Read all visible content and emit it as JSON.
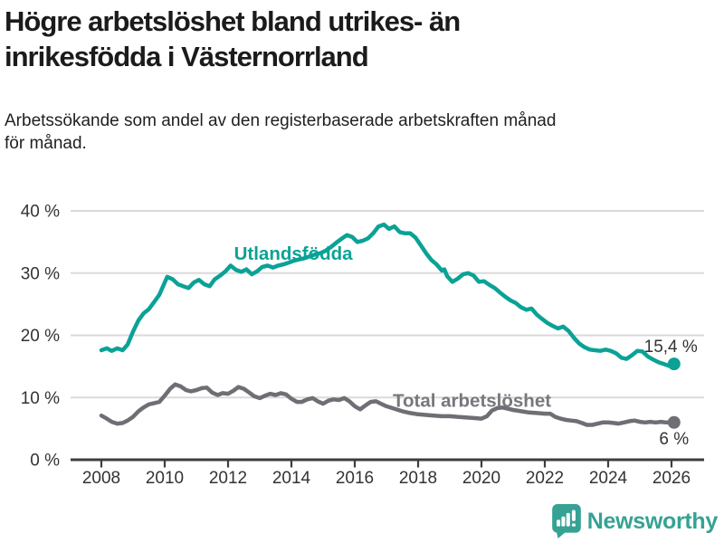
{
  "title_lines": [
    "Högre arbetslöshet bland utrikes- än",
    "inrikesfödda i Västernorrland"
  ],
  "subtitle_lines": [
    "Arbetssökande som andel av den registerbaserade arbetskraften månad",
    "för månad."
  ],
  "logo": {
    "text": "Newsworthy",
    "icon": "newsworthy-speech-bubble-chart-icon",
    "color": "#35a294"
  },
  "colors": {
    "background": "#ffffff",
    "grid": "#dadada",
    "axis": "#3d3d3d",
    "tick_text": "#333333",
    "annotation_text": "#333333",
    "foreign_born_line": "#0ba296",
    "total_line": "#6e6e74",
    "total_label": "#77777d"
  },
  "chart_data": {
    "type": "line",
    "title": "Högre arbetslöshet bland utrikes- än inrikesfödda i Västernorrland",
    "subtitle": "Arbetssökande som andel av den registerbaserade arbetskraften månad för månad.",
    "xlabel": "",
    "ylabel": "",
    "ylim": [
      0,
      40
    ],
    "xlim": [
      2007.0,
      2027.1
    ],
    "grid": "horizontal",
    "legend": "inline-labels",
    "y_ticks": [
      {
        "value": 0,
        "label": "0 %"
      },
      {
        "value": 10,
        "label": "10 %"
      },
      {
        "value": 20,
        "label": "20 %"
      },
      {
        "value": 30,
        "label": "30 %"
      },
      {
        "value": 40,
        "label": "40 %"
      }
    ],
    "x_ticks": [
      {
        "value": 2008,
        "label": "2008"
      },
      {
        "value": 2010,
        "label": "2010"
      },
      {
        "value": 2012,
        "label": "2012"
      },
      {
        "value": 2014,
        "label": "2014"
      },
      {
        "value": 2016,
        "label": "2016"
      },
      {
        "value": 2018,
        "label": "2018"
      },
      {
        "value": 2020,
        "label": "2020"
      },
      {
        "value": 2022,
        "label": "2022"
      },
      {
        "value": 2024,
        "label": "2024"
      },
      {
        "value": 2026,
        "label": "2026"
      }
    ],
    "series": [
      {
        "id": "utlandsfodda",
        "name": "Utlandsfödda",
        "color": "#0ba296",
        "label_color": "#0ba296",
        "label_pos": {
          "x": 2014.06,
          "y": 33.2,
          "anchor": "middle"
        },
        "end_dot": true,
        "end_label": "15,4 %",
        "end_label_position": "above-left",
        "points": [
          [
            2008.0,
            17.6
          ],
          [
            2008.17,
            17.9
          ],
          [
            2008.33,
            17.5
          ],
          [
            2008.5,
            17.9
          ],
          [
            2008.67,
            17.6
          ],
          [
            2008.83,
            18.5
          ],
          [
            2009.0,
            20.6
          ],
          [
            2009.17,
            22.4
          ],
          [
            2009.33,
            23.5
          ],
          [
            2009.5,
            24.2
          ],
          [
            2009.67,
            25.4
          ],
          [
            2009.83,
            26.5
          ],
          [
            2010.0,
            28.5
          ],
          [
            2010.08,
            29.4
          ],
          [
            2010.25,
            29.0
          ],
          [
            2010.42,
            28.2
          ],
          [
            2010.58,
            27.9
          ],
          [
            2010.75,
            27.6
          ],
          [
            2010.92,
            28.5
          ],
          [
            2011.08,
            28.9
          ],
          [
            2011.25,
            28.2
          ],
          [
            2011.42,
            27.9
          ],
          [
            2011.58,
            29.0
          ],
          [
            2011.75,
            29.6
          ],
          [
            2011.92,
            30.3
          ],
          [
            2012.08,
            31.2
          ],
          [
            2012.25,
            30.5
          ],
          [
            2012.42,
            30.2
          ],
          [
            2012.58,
            30.6
          ],
          [
            2012.75,
            29.8
          ],
          [
            2012.92,
            30.3
          ],
          [
            2013.08,
            31.0
          ],
          [
            2013.25,
            31.2
          ],
          [
            2013.42,
            30.9
          ],
          [
            2013.58,
            31.2
          ],
          [
            2013.75,
            31.4
          ],
          [
            2013.92,
            31.7
          ],
          [
            2014.08,
            32.0
          ],
          [
            2014.25,
            32.2
          ],
          [
            2014.42,
            32.4
          ],
          [
            2014.58,
            32.7
          ],
          [
            2014.75,
            33.0
          ],
          [
            2014.92,
            33.2
          ],
          [
            2015.08,
            33.6
          ],
          [
            2015.25,
            34.2
          ],
          [
            2015.42,
            34.9
          ],
          [
            2015.58,
            35.5
          ],
          [
            2015.75,
            36.1
          ],
          [
            2015.92,
            35.8
          ],
          [
            2016.08,
            35.0
          ],
          [
            2016.25,
            35.2
          ],
          [
            2016.42,
            35.6
          ],
          [
            2016.58,
            36.4
          ],
          [
            2016.75,
            37.5
          ],
          [
            2016.92,
            37.8
          ],
          [
            2017.08,
            37.1
          ],
          [
            2017.25,
            37.5
          ],
          [
            2017.42,
            36.6
          ],
          [
            2017.58,
            36.4
          ],
          [
            2017.75,
            36.4
          ],
          [
            2017.92,
            35.7
          ],
          [
            2018.08,
            34.5
          ],
          [
            2018.25,
            33.2
          ],
          [
            2018.42,
            32.1
          ],
          [
            2018.58,
            31.4
          ],
          [
            2018.75,
            30.4
          ],
          [
            2018.83,
            30.6
          ],
          [
            2018.92,
            29.5
          ],
          [
            2019.08,
            28.6
          ],
          [
            2019.25,
            29.1
          ],
          [
            2019.42,
            29.8
          ],
          [
            2019.58,
            30.0
          ],
          [
            2019.75,
            29.6
          ],
          [
            2019.92,
            28.6
          ],
          [
            2020.08,
            28.7
          ],
          [
            2020.25,
            28.1
          ],
          [
            2020.42,
            27.6
          ],
          [
            2020.58,
            26.9
          ],
          [
            2020.75,
            26.2
          ],
          [
            2020.92,
            25.6
          ],
          [
            2021.08,
            25.2
          ],
          [
            2021.25,
            24.5
          ],
          [
            2021.42,
            24.1
          ],
          [
            2021.58,
            24.3
          ],
          [
            2021.75,
            23.3
          ],
          [
            2021.92,
            22.6
          ],
          [
            2022.08,
            22.0
          ],
          [
            2022.25,
            21.5
          ],
          [
            2022.42,
            21.1
          ],
          [
            2022.58,
            21.4
          ],
          [
            2022.75,
            20.7
          ],
          [
            2022.92,
            19.6
          ],
          [
            2023.08,
            18.7
          ],
          [
            2023.25,
            18.1
          ],
          [
            2023.42,
            17.7
          ],
          [
            2023.58,
            17.6
          ],
          [
            2023.75,
            17.5
          ],
          [
            2023.92,
            17.7
          ],
          [
            2024.08,
            17.5
          ],
          [
            2024.25,
            17.1
          ],
          [
            2024.42,
            16.4
          ],
          [
            2024.58,
            16.2
          ],
          [
            2024.75,
            16.8
          ],
          [
            2024.92,
            17.5
          ],
          [
            2025.08,
            17.4
          ],
          [
            2025.25,
            16.6
          ],
          [
            2025.42,
            16.1
          ],
          [
            2025.58,
            15.7
          ],
          [
            2025.75,
            15.4
          ],
          [
            2025.92,
            15.1
          ],
          [
            2026.08,
            15.4
          ]
        ]
      },
      {
        "id": "total-arbetsloshet",
        "name": "Total arbetslöshet",
        "color": "#6e6e74",
        "label_color": "#77777d",
        "label_pos": {
          "x": 2017.2,
          "y": 9.55,
          "anchor": "start"
        },
        "end_dot": true,
        "end_label": "6 %",
        "end_label_position": "below",
        "points": [
          [
            2008.0,
            7.1
          ],
          [
            2008.17,
            6.6
          ],
          [
            2008.33,
            6.1
          ],
          [
            2008.5,
            5.8
          ],
          [
            2008.67,
            5.9
          ],
          [
            2008.83,
            6.3
          ],
          [
            2009.0,
            6.9
          ],
          [
            2009.17,
            7.8
          ],
          [
            2009.33,
            8.4
          ],
          [
            2009.5,
            8.9
          ],
          [
            2009.67,
            9.1
          ],
          [
            2009.83,
            9.3
          ],
          [
            2010.0,
            10.3
          ],
          [
            2010.17,
            11.4
          ],
          [
            2010.33,
            12.1
          ],
          [
            2010.5,
            11.8
          ],
          [
            2010.67,
            11.2
          ],
          [
            2010.83,
            11.0
          ],
          [
            2011.0,
            11.2
          ],
          [
            2011.17,
            11.5
          ],
          [
            2011.33,
            11.6
          ],
          [
            2011.5,
            10.8
          ],
          [
            2011.67,
            10.4
          ],
          [
            2011.83,
            10.7
          ],
          [
            2012.0,
            10.6
          ],
          [
            2012.17,
            11.1
          ],
          [
            2012.33,
            11.7
          ],
          [
            2012.5,
            11.4
          ],
          [
            2012.67,
            10.8
          ],
          [
            2012.83,
            10.2
          ],
          [
            2013.0,
            9.9
          ],
          [
            2013.17,
            10.3
          ],
          [
            2013.33,
            10.6
          ],
          [
            2013.5,
            10.4
          ],
          [
            2013.67,
            10.7
          ],
          [
            2013.83,
            10.5
          ],
          [
            2014.0,
            9.8
          ],
          [
            2014.17,
            9.3
          ],
          [
            2014.33,
            9.3
          ],
          [
            2014.5,
            9.7
          ],
          [
            2014.67,
            9.9
          ],
          [
            2014.83,
            9.4
          ],
          [
            2015.0,
            9.0
          ],
          [
            2015.17,
            9.5
          ],
          [
            2015.33,
            9.7
          ],
          [
            2015.5,
            9.6
          ],
          [
            2015.67,
            9.9
          ],
          [
            2015.83,
            9.4
          ],
          [
            2016.0,
            8.6
          ],
          [
            2016.17,
            8.1
          ],
          [
            2016.33,
            8.7
          ],
          [
            2016.5,
            9.3
          ],
          [
            2016.67,
            9.4
          ],
          [
            2016.83,
            9.0
          ],
          [
            2017.0,
            8.6
          ],
          [
            2017.25,
            8.2
          ],
          [
            2017.5,
            7.8
          ],
          [
            2017.75,
            7.5
          ],
          [
            2018.0,
            7.3
          ],
          [
            2018.25,
            7.2
          ],
          [
            2018.5,
            7.1
          ],
          [
            2018.75,
            7.0
          ],
          [
            2019.0,
            7.0
          ],
          [
            2019.25,
            6.9
          ],
          [
            2019.5,
            6.8
          ],
          [
            2019.75,
            6.7
          ],
          [
            2020.0,
            6.6
          ],
          [
            2020.17,
            7.0
          ],
          [
            2020.33,
            7.9
          ],
          [
            2020.5,
            8.3
          ],
          [
            2020.67,
            8.4
          ],
          [
            2020.83,
            8.2
          ],
          [
            2021.0,
            8.0
          ],
          [
            2021.25,
            7.8
          ],
          [
            2021.5,
            7.6
          ],
          [
            2021.75,
            7.5
          ],
          [
            2022.0,
            7.4
          ],
          [
            2022.17,
            7.4
          ],
          [
            2022.33,
            6.9
          ],
          [
            2022.5,
            6.6
          ],
          [
            2022.67,
            6.4
          ],
          [
            2022.83,
            6.3
          ],
          [
            2023.0,
            6.2
          ],
          [
            2023.17,
            5.9
          ],
          [
            2023.33,
            5.6
          ],
          [
            2023.5,
            5.6
          ],
          [
            2023.67,
            5.8
          ],
          [
            2023.83,
            6.0
          ],
          [
            2024.0,
            6.0
          ],
          [
            2024.17,
            5.9
          ],
          [
            2024.33,
            5.8
          ],
          [
            2024.5,
            6.0
          ],
          [
            2024.67,
            6.2
          ],
          [
            2024.83,
            6.3
          ],
          [
            2025.0,
            6.1
          ],
          [
            2025.17,
            6.0
          ],
          [
            2025.33,
            6.1
          ],
          [
            2025.5,
            6.0
          ],
          [
            2025.67,
            6.1
          ],
          [
            2025.83,
            6.0
          ],
          [
            2026.08,
            6.0
          ]
        ]
      }
    ]
  }
}
